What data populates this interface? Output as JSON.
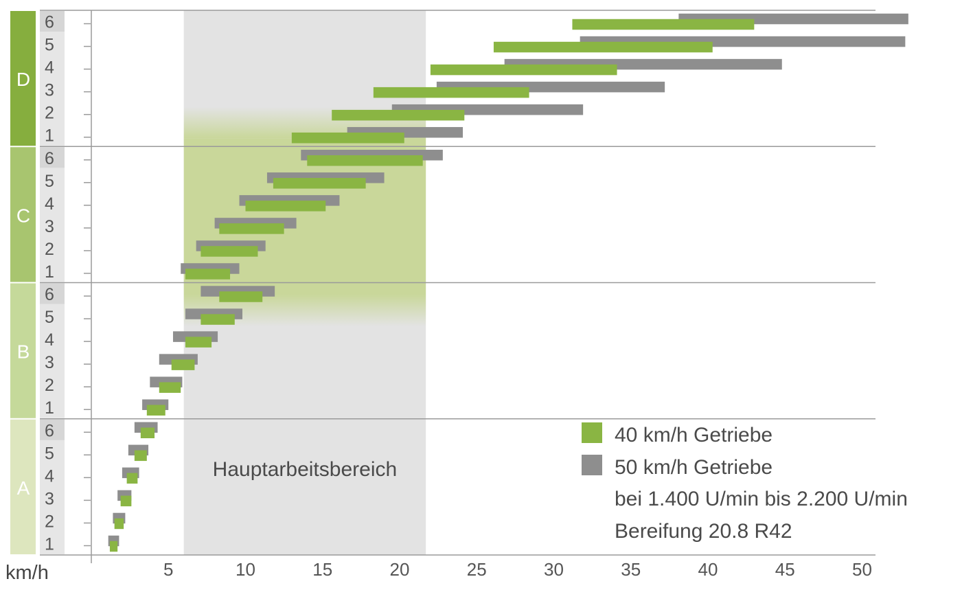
{
  "chart_data": {
    "type": "range-bar",
    "title": "",
    "xlabel": "km/h",
    "xlim": [
      0,
      51
    ],
    "xticks": [
      5,
      10,
      15,
      20,
      25,
      30,
      35,
      40,
      45,
      50
    ],
    "work_range": {
      "label": "Hauptarbeitsbereich",
      "from": 6,
      "to": 21.7
    },
    "colors": {
      "g40": "#8ab543",
      "g50": "#8e8e8e",
      "area": "#e3e3e3",
      "work_green": "#c9d79a",
      "grid": "#9a9a9a",
      "axis_text": "#555555",
      "legend_text": "#4a4a4a"
    },
    "groups": [
      {
        "name": "A",
        "color": "#dde6be",
        "gears": [
          "1",
          "2",
          "3",
          "4",
          "5",
          "6"
        ],
        "tab": "#e6e6e6"
      },
      {
        "name": "B",
        "color": "#c5d99a",
        "gears": [
          "1",
          "2",
          "3",
          "4",
          "5",
          "6"
        ],
        "tab": "#e6e6e6"
      },
      {
        "name": "C",
        "color": "#a8c56f",
        "gears": [
          "1",
          "2",
          "3",
          "4",
          "5",
          "6"
        ],
        "tab": "#e6e6e6"
      },
      {
        "name": "D",
        "color": "#86ae3e",
        "gears": [
          "1",
          "2",
          "3",
          "4",
          "5",
          "6"
        ],
        "tab": "#e6e6e6"
      }
    ],
    "series": [
      {
        "name": "40 km/h Getriebe",
        "ranges": [
          [
            1.2,
            1.7
          ],
          [
            1.5,
            2.1
          ],
          [
            1.9,
            2.6
          ],
          [
            2.3,
            3.0
          ],
          [
            2.8,
            3.6
          ],
          [
            3.2,
            4.1
          ],
          [
            3.6,
            4.8
          ],
          [
            4.4,
            5.8
          ],
          [
            5.2,
            6.7
          ],
          [
            6.1,
            7.8
          ],
          [
            7.1,
            9.3
          ],
          [
            8.3,
            11.1
          ],
          [
            6.1,
            9.0
          ],
          [
            7.1,
            10.8
          ],
          [
            8.3,
            12.5
          ],
          [
            10.0,
            15.2
          ],
          [
            11.8,
            17.8
          ],
          [
            14.0,
            21.5
          ],
          [
            13.0,
            20.3
          ],
          [
            15.6,
            24.2
          ],
          [
            18.3,
            28.4
          ],
          [
            22.0,
            34.1
          ],
          [
            26.1,
            40.3
          ],
          [
            31.2,
            43.0
          ]
        ]
      },
      {
        "name": "50 km/h Getriebe",
        "ranges": [
          [
            1.1,
            1.8
          ],
          [
            1.4,
            2.2
          ],
          [
            1.7,
            2.6
          ],
          [
            2.0,
            3.1
          ],
          [
            2.4,
            3.7
          ],
          [
            2.8,
            4.3
          ],
          [
            3.3,
            5.0
          ],
          [
            3.8,
            5.9
          ],
          [
            4.4,
            6.9
          ],
          [
            5.3,
            8.2
          ],
          [
            6.1,
            9.8
          ],
          [
            7.1,
            11.9
          ],
          [
            5.8,
            9.6
          ],
          [
            6.8,
            11.3
          ],
          [
            8.0,
            13.3
          ],
          [
            9.6,
            16.1
          ],
          [
            11.4,
            19.0
          ],
          [
            13.6,
            22.8
          ],
          [
            16.6,
            24.1
          ],
          [
            19.5,
            31.9
          ],
          [
            22.4,
            37.2
          ],
          [
            26.8,
            44.8
          ],
          [
            31.7,
            52.8
          ],
          [
            38.1,
            53.0
          ]
        ]
      }
    ],
    "legend": {
      "items": [
        {
          "label": "40 km/h Getriebe",
          "color": "#8ab543"
        },
        {
          "label": "50 km/h Getriebe",
          "color": "#8e8e8e"
        }
      ],
      "notes": [
        "bei 1.400 U/min bis 2.200 U/min",
        "Bereifung 20.8 R42"
      ]
    }
  }
}
